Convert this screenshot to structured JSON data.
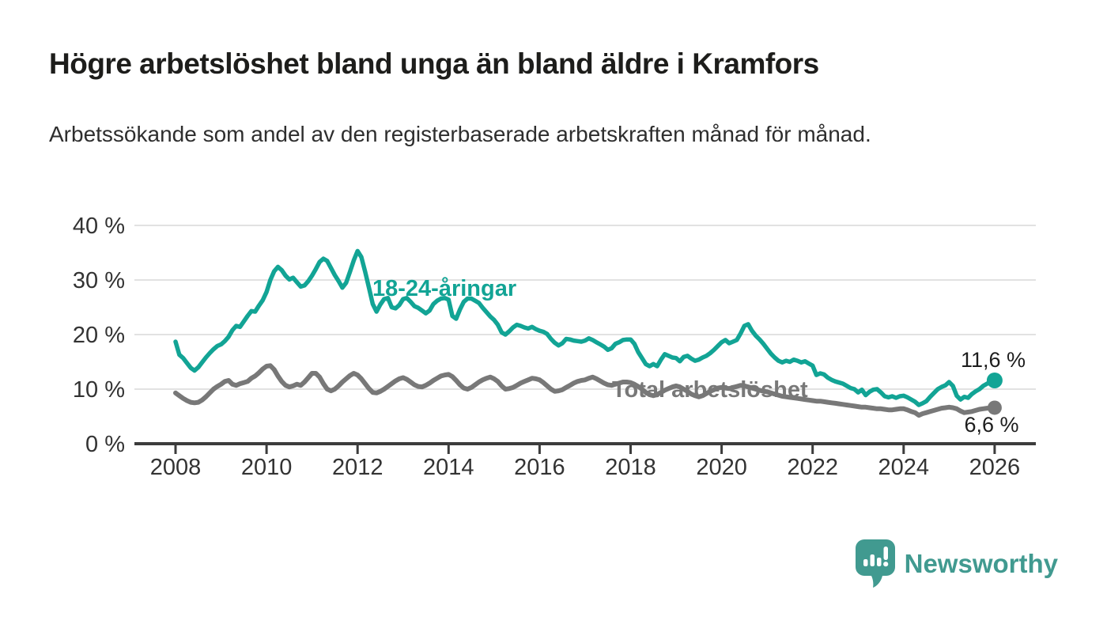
{
  "header": {
    "title": "Högre arbetslöshet bland unga än bland äldre i Kramfors",
    "subtitle": "Arbetssökande som andel av den registerbaserade arbetskraften månad för månad."
  },
  "branding": {
    "logo_text": "Newsworthy",
    "logo_icon": "newsworthy-speech-bubble-barchart-icon",
    "logo_color": "#419a90"
  },
  "colors": {
    "young_series": "#12a495",
    "total_series": "#787878",
    "gridline": "#d9d9d9",
    "axis": "#3c3c3c",
    "value_label": "#1d1d1d"
  },
  "chart_data": {
    "type": "line",
    "title": "Högre arbetslöshet bland unga än bland äldre i Kramfors",
    "subtitle": "Arbetssökande som andel av den registerbaserade arbetskraften månad för månad.",
    "x_unit": "monthly, decimal years",
    "x_start": 2008.0,
    "x_step": 0.0833333,
    "xlim": [
      2007.1,
      2026.9
    ],
    "ylim": [
      0,
      40
    ],
    "grid": "horizontal",
    "legend_position": "inline-labels",
    "y_ticks": [
      {
        "value": 40,
        "label": "40 %"
      },
      {
        "value": 30,
        "label": "30 %"
      },
      {
        "value": 20,
        "label": "20 %"
      },
      {
        "value": 10,
        "label": "10 %"
      },
      {
        "value": 0,
        "label": "0 %"
      }
    ],
    "x_ticks": [
      {
        "value": 2008,
        "label": "2008"
      },
      {
        "value": 2010,
        "label": "2010"
      },
      {
        "value": 2012,
        "label": "2012"
      },
      {
        "value": 2014,
        "label": "2014"
      },
      {
        "value": 2016,
        "label": "2016"
      },
      {
        "value": 2018,
        "label": "2018"
      },
      {
        "value": 2020,
        "label": "2020"
      },
      {
        "value": 2022,
        "label": "2022"
      },
      {
        "value": 2024,
        "label": "2024"
      },
      {
        "value": 2026,
        "label": "2026"
      }
    ],
    "series": [
      {
        "name": "18-24-åringar",
        "color": "#12a495",
        "end_value": 11.6,
        "end_label": "11,6 %",
        "values": [
          18.7,
          16.3,
          15.7,
          14.8,
          13.9,
          13.4,
          14.0,
          14.9,
          15.8,
          16.6,
          17.3,
          17.9,
          18.2,
          18.8,
          19.6,
          20.8,
          21.6,
          21.4,
          22.4,
          23.4,
          24.3,
          24.2,
          25.3,
          26.3,
          27.8,
          30.0,
          31.6,
          32.4,
          31.8,
          30.8,
          30.1,
          30.4,
          29.6,
          28.8,
          29.0,
          29.8,
          30.8,
          32.0,
          33.3,
          33.9,
          33.5,
          32.2,
          30.9,
          29.8,
          28.6,
          29.5,
          31.5,
          33.6,
          35.3,
          34.2,
          31.5,
          28.6,
          25.6,
          24.2,
          25.5,
          26.5,
          26.7,
          25.0,
          24.8,
          25.4,
          26.5,
          26.7,
          26.0,
          25.2,
          24.9,
          24.4,
          23.9,
          24.4,
          25.6,
          26.2,
          26.6,
          26.7,
          26.4,
          23.4,
          22.9,
          24.6,
          26.0,
          26.6,
          26.6,
          26.2,
          25.8,
          24.9,
          24.1,
          23.3,
          22.7,
          21.8,
          20.4,
          20.0,
          20.6,
          21.3,
          21.8,
          21.6,
          21.3,
          21.1,
          21.4,
          21.0,
          20.7,
          20.5,
          20.1,
          19.2,
          18.5,
          18.0,
          18.4,
          19.2,
          19.1,
          18.9,
          18.8,
          18.7,
          18.9,
          19.3,
          19.0,
          18.6,
          18.2,
          17.8,
          17.2,
          17.5,
          18.3,
          18.6,
          19.0,
          19.1,
          19.1,
          18.3,
          16.8,
          15.7,
          14.6,
          14.2,
          14.6,
          14.2,
          15.4,
          16.4,
          16.1,
          15.8,
          15.7,
          15.1,
          15.9,
          16.1,
          15.6,
          15.2,
          15.4,
          15.8,
          16.1,
          16.6,
          17.2,
          17.9,
          18.6,
          19.0,
          18.4,
          18.7,
          19.0,
          20.2,
          21.6,
          21.9,
          20.7,
          19.8,
          19.1,
          18.3,
          17.4,
          16.5,
          15.8,
          15.2,
          14.9,
          15.2,
          15.0,
          15.4,
          15.2,
          14.9,
          15.1,
          14.7,
          14.3,
          12.6,
          12.9,
          12.7,
          12.1,
          11.7,
          11.4,
          11.2,
          11.0,
          10.6,
          10.2,
          10.0,
          9.4,
          9.9,
          8.9,
          9.5,
          9.9,
          10.0,
          9.4,
          8.7,
          8.5,
          8.7,
          8.4,
          8.7,
          8.8,
          8.5,
          8.1,
          7.7,
          7.1,
          7.4,
          7.8,
          8.6,
          9.3,
          10.0,
          10.4,
          10.7,
          11.3,
          10.6,
          8.8,
          8.1,
          8.6,
          8.4,
          9.1,
          9.6,
          10.0,
          10.6,
          11.0,
          11.4,
          11.6
        ]
      },
      {
        "name": "Total arbetslöshet",
        "color": "#787878",
        "end_value": 6.6,
        "end_label": "6,6 %",
        "values": [
          9.3,
          8.8,
          8.3,
          7.9,
          7.6,
          7.5,
          7.6,
          8.0,
          8.6,
          9.3,
          10.0,
          10.5,
          10.9,
          11.4,
          11.6,
          10.9,
          10.7,
          11.0,
          11.2,
          11.4,
          12.0,
          12.4,
          13.0,
          13.7,
          14.2,
          14.3,
          13.6,
          12.4,
          11.4,
          10.7,
          10.4,
          10.6,
          10.9,
          10.7,
          11.3,
          12.1,
          12.9,
          12.9,
          12.2,
          11.0,
          10.0,
          9.7,
          10.0,
          10.6,
          11.3,
          11.9,
          12.5,
          12.9,
          12.6,
          11.9,
          11.0,
          10.1,
          9.4,
          9.3,
          9.6,
          10.0,
          10.5,
          11.0,
          11.5,
          11.9,
          12.1,
          11.8,
          11.3,
          10.8,
          10.5,
          10.4,
          10.7,
          11.1,
          11.6,
          12.0,
          12.4,
          12.6,
          12.7,
          12.3,
          11.6,
          10.8,
          10.2,
          10.0,
          10.3,
          10.8,
          11.3,
          11.7,
          12.0,
          12.2,
          11.9,
          11.4,
          10.6,
          10.0,
          10.1,
          10.3,
          10.7,
          11.1,
          11.4,
          11.7,
          12.0,
          11.9,
          11.7,
          11.2,
          10.6,
          10.0,
          9.6,
          9.7,
          9.9,
          10.3,
          10.7,
          11.1,
          11.4,
          11.6,
          11.7,
          12.0,
          12.2,
          11.9,
          11.5,
          11.1,
          10.8,
          10.7,
          10.9,
          11.1,
          11.3,
          11.3,
          11.2,
          10.9,
          10.5,
          10.0,
          9.4,
          9.0,
          8.8,
          9.0,
          9.4,
          9.8,
          10.1,
          10.4,
          10.6,
          10.4,
          10.0,
          9.6,
          9.1,
          8.8,
          8.6,
          8.8,
          9.2,
          9.6,
          9.9,
          10.2,
          10.3,
          10.2,
          10.1,
          10.3,
          10.5,
          10.7,
          10.6,
          10.4,
          10.2,
          10.0,
          9.8,
          9.6,
          9.5,
          9.3,
          9.1,
          8.9,
          8.7,
          8.6,
          8.5,
          8.4,
          8.3,
          8.2,
          8.1,
          8.0,
          7.9,
          7.8,
          7.8,
          7.7,
          7.6,
          7.5,
          7.4,
          7.3,
          7.2,
          7.1,
          7.0,
          6.9,
          6.8,
          6.7,
          6.7,
          6.6,
          6.5,
          6.4,
          6.4,
          6.3,
          6.2,
          6.2,
          6.3,
          6.4,
          6.4,
          6.2,
          5.9,
          5.7,
          5.2,
          5.5,
          5.7,
          5.9,
          6.1,
          6.3,
          6.5,
          6.6,
          6.7,
          6.6,
          6.4,
          6.0,
          5.7,
          5.8,
          5.9,
          6.1,
          6.3,
          6.4,
          6.5,
          6.5,
          6.6
        ]
      }
    ]
  }
}
